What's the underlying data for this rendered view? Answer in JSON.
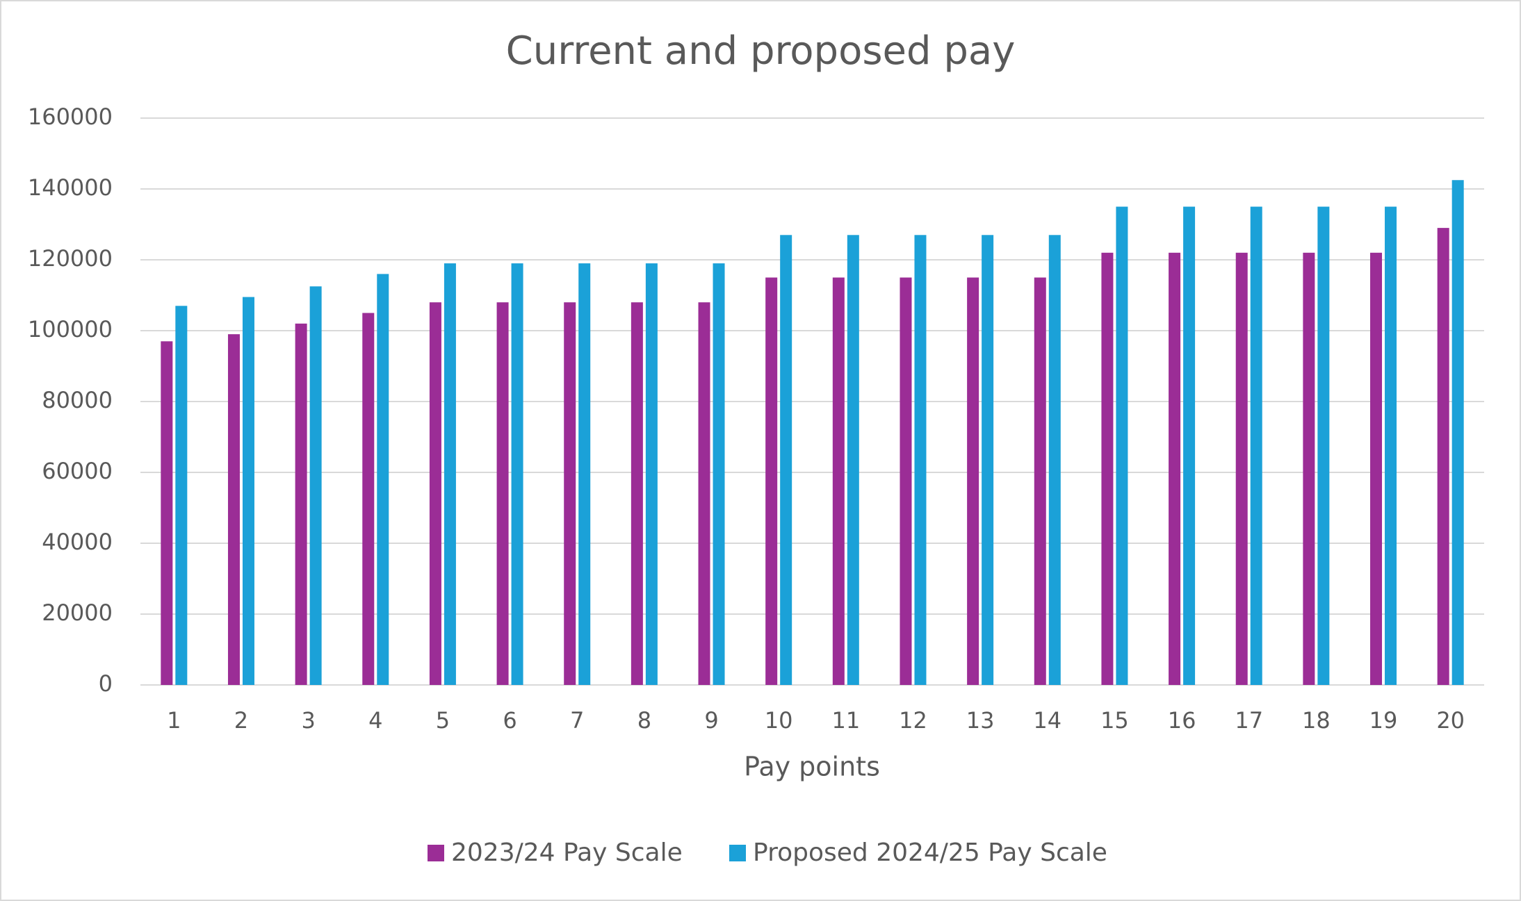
{
  "chart_data": {
    "type": "bar",
    "title": "Current and proposed pay",
    "x_label": "Pay points",
    "categories": [
      "1",
      "2",
      "3",
      "4",
      "5",
      "6",
      "7",
      "8",
      "9",
      "10",
      "11",
      "12",
      "13",
      "14",
      "15",
      "16",
      "17",
      "18",
      "19",
      "20"
    ],
    "series": [
      {
        "name": "2023/24 Pay Scale",
        "color": "#9b2d96",
        "values": [
          97000,
          99000,
          102000,
          105000,
          108000,
          108000,
          108000,
          108000,
          108000,
          115000,
          115000,
          115000,
          115000,
          115000,
          122000,
          122000,
          122000,
          122000,
          122000,
          129000
        ]
      },
      {
        "name": "Proposed 2024/25 Pay Scale",
        "color": "#1ba1d8",
        "values": [
          107000,
          109500,
          112500,
          116000,
          119000,
          119000,
          119000,
          119000,
          119000,
          127000,
          127000,
          127000,
          127000,
          127000,
          135000,
          135000,
          135000,
          135000,
          135000,
          142500
        ]
      }
    ],
    "ylim": [
      0,
      160000
    ],
    "yticks": [
      0,
      20000,
      40000,
      60000,
      80000,
      100000,
      120000,
      140000,
      160000
    ],
    "grid": true,
    "legend": "bottom"
  }
}
